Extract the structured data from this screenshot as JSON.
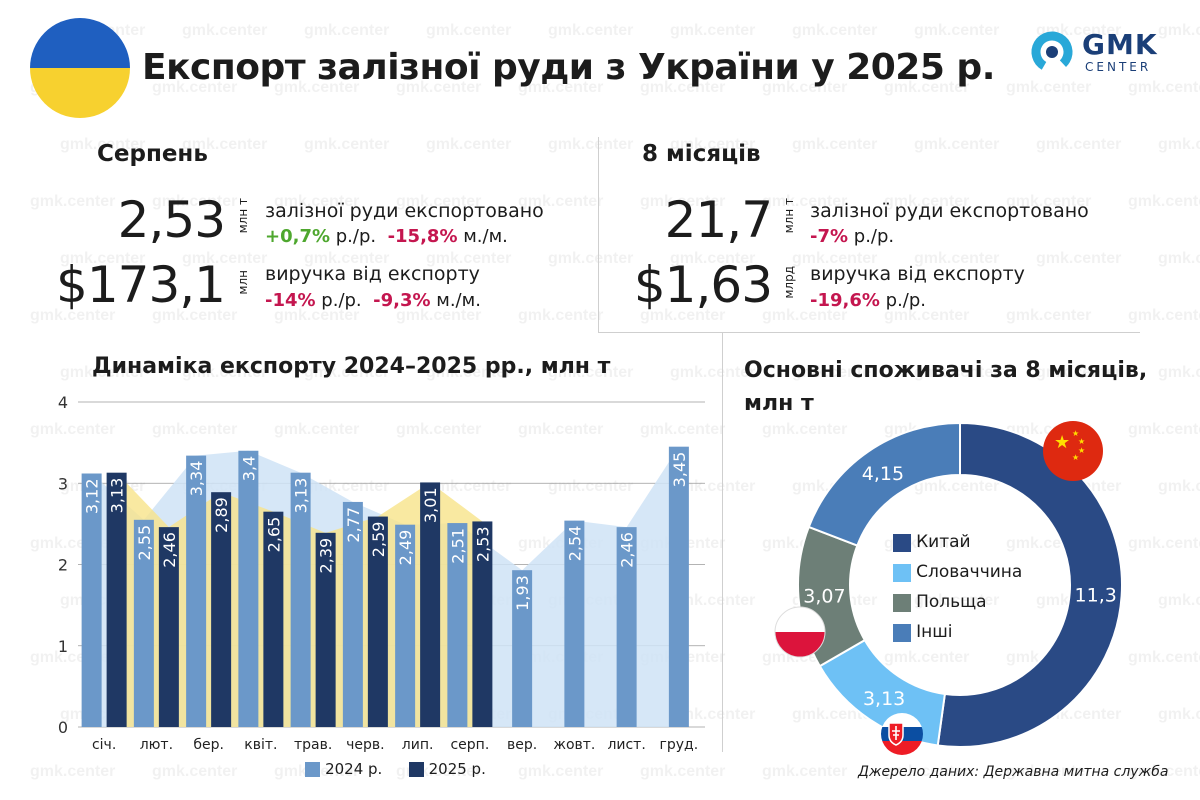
{
  "header": {
    "title": "Експорт залізної руди з України у 2025 р.",
    "logo_name": "GMK",
    "logo_sub": "CENTER",
    "watermark": "gmk.center"
  },
  "august": {
    "title": "Серпень",
    "volume": "2,53",
    "volume_unit": "млн т",
    "volume_desc": "залізної руди експортовано",
    "volume_yoy": "+0,7%",
    "volume_yoy_suffix": "р./р.",
    "volume_mom": "-15,8%",
    "volume_mom_suffix": "м./м.",
    "revenue": "$173,1",
    "revenue_unit": "млн",
    "revenue_desc": "виручка від експорту",
    "revenue_yoy": "-14%",
    "revenue_yoy_suffix": "р./р.",
    "revenue_mom": "-9,3%",
    "revenue_mom_suffix": "м./м."
  },
  "eight_months": {
    "title": "8 місяців",
    "volume": "21,7",
    "volume_unit": "млн т",
    "volume_desc": "залізної руди експортовано",
    "volume_yoy": "-7%",
    "volume_yoy_suffix": "р./р.",
    "revenue": "$1,63",
    "revenue_unit": "млрд",
    "revenue_desc": "виручка від експорту",
    "revenue_yoy": "-19,6%",
    "revenue_yoy_suffix": "р./р."
  },
  "colors": {
    "y2024": "#6b98c9",
    "y2025": "#1f3864",
    "positive": "#4ea72e",
    "negative": "#c4164f",
    "area_2024": "#cfe3f6",
    "area_2025": "#f7e38a",
    "china": "#2a4a85",
    "slovakia": "#6ec1f5",
    "poland": "#6d7f77",
    "other": "#4a7db8"
  },
  "source": "Джерело даних: Державна митна служба",
  "chart_data": [
    {
      "type": "bar",
      "title": "Динаміка експорту 2024–2025 рр., млн т",
      "categories": [
        "січ.",
        "лют.",
        "бер.",
        "квіт.",
        "трав.",
        "черв.",
        "лип.",
        "серп.",
        "вер.",
        "жовт.",
        "лист.",
        "груд."
      ],
      "series": [
        {
          "name": "2024 р.",
          "values": [
            3.12,
            2.55,
            3.34,
            3.4,
            3.13,
            2.77,
            2.49,
            2.51,
            1.93,
            2.54,
            2.46,
            3.45
          ],
          "labels": [
            "3,12",
            "2,55",
            "3,34",
            "3,4",
            "3,13",
            "2,77",
            "2,49",
            "2,51",
            "1,93",
            "2,54",
            "2,46",
            "3,45"
          ]
        },
        {
          "name": "2025 р.",
          "values": [
            3.13,
            2.46,
            2.89,
            2.65,
            2.39,
            2.59,
            3.01,
            2.53,
            null,
            null,
            null,
            null
          ],
          "labels": [
            "3,13",
            "2,46",
            "2,89",
            "2,65",
            "2,39",
            "2,59",
            "3,01",
            "2,53",
            "",
            "",
            "",
            ""
          ]
        }
      ],
      "yticks": [
        "0",
        "1",
        "2",
        "3",
        "4"
      ],
      "ylim": [
        0,
        4
      ],
      "legend_position": "bottom"
    },
    {
      "type": "pie",
      "title": "Основні споживачі за 8 місяців, млн т",
      "categories": [
        "Китай",
        "Словаччина",
        "Польща",
        "Інші"
      ],
      "values": [
        11.3,
        3.13,
        3.07,
        4.15
      ],
      "labels": [
        "11,3",
        "3,13",
        "3,07",
        "4,15"
      ],
      "legend_position": "center"
    }
  ]
}
